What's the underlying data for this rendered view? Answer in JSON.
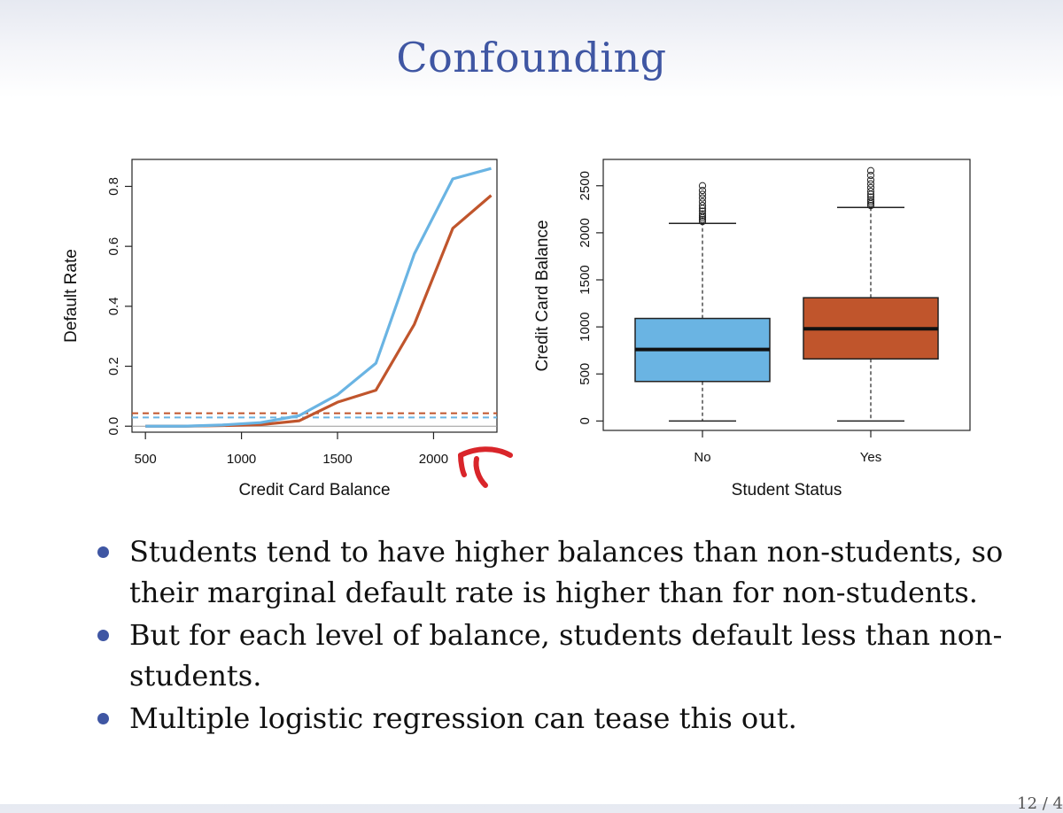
{
  "slide": {
    "title": "Confounding",
    "page_number": "12 / 4"
  },
  "bullets": [
    "Students tend to have higher balances than non-students, so their marginal default rate is higher than for non-students.",
    "But for each level of balance, students default less than non-students.",
    "Multiple logistic regression can tease this out."
  ],
  "colors": {
    "title": "#3f56a3",
    "student_yes": "#c0552c",
    "student_no": "#6ab4e3",
    "bullet": "#3f56a3",
    "annotation": "#d9252a"
  },
  "chart_data": [
    {
      "type": "line",
      "xlabel": "Credit Card Balance",
      "ylabel": "Default Rate",
      "xlim": [
        430,
        2330
      ],
      "ylim": [
        -0.02,
        0.89
      ],
      "x_ticks": [
        "500",
        "1000",
        "1500",
        "2000"
      ],
      "y_ticks": [
        "0.0",
        "0.2",
        "0.4",
        "0.6",
        "0.8"
      ],
      "series": [
        {
          "color": "#c0552c",
          "x": [
            500,
            700,
            900,
            1100,
            1300,
            1500,
            1700,
            1900,
            2100,
            2300
          ],
          "y": [
            0.0,
            0.0,
            0.002,
            0.005,
            0.018,
            0.08,
            0.12,
            0.34,
            0.66,
            0.77
          ],
          "marginal_rate": 0.043
        },
        {
          "color": "#6ab4e3",
          "x": [
            500,
            700,
            900,
            1100,
            1300,
            1500,
            1700,
            1900,
            2100,
            2300
          ],
          "y": [
            0.0,
            0.0,
            0.004,
            0.012,
            0.035,
            0.105,
            0.21,
            0.575,
            0.825,
            0.86
          ],
          "marginal_rate": 0.029
        }
      ],
      "grid": false
    },
    {
      "type": "box",
      "xlabel": "Student Status",
      "ylabel": "Credit Card Balance",
      "ylim": [
        -100,
        2780
      ],
      "y_ticks": [
        "0",
        "500",
        "1000",
        "1500",
        "2000",
        "2500"
      ],
      "categories": [
        "No",
        "Yes"
      ],
      "boxes": [
        {
          "label": "No",
          "color": "#6ab4e3",
          "min": 0,
          "q1": 420,
          "median": 760,
          "q3": 1090,
          "max": 2100,
          "outliers": [
            2120,
            2140,
            2160,
            2180,
            2200,
            2230,
            2260,
            2290,
            2330,
            2370,
            2410,
            2450,
            2500
          ]
        },
        {
          "label": "Yes",
          "color": "#c0552c",
          "min": 0,
          "q1": 660,
          "median": 980,
          "q3": 1310,
          "max": 2270,
          "outliers": [
            2290,
            2310,
            2330,
            2350,
            2380,
            2410,
            2440,
            2480,
            2520,
            2560,
            2610,
            2660
          ]
        }
      ],
      "grid": false
    }
  ]
}
